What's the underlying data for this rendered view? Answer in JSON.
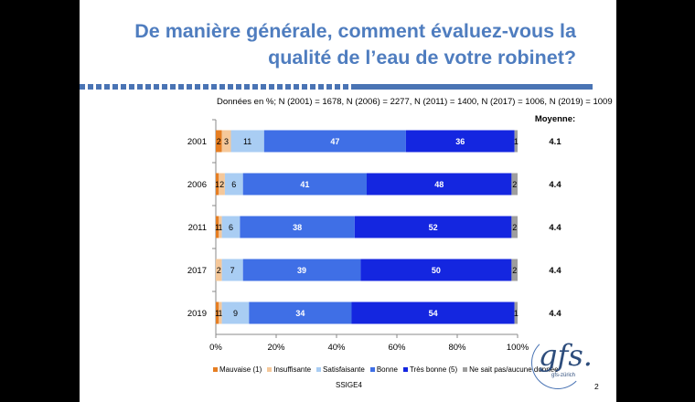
{
  "title_line1": "De manière générale, comment évaluez-vous la",
  "title_line2": "qualité de l’eau de votre robinet?",
  "note": "Données en %; N (2001) = 1678, N (2006) = 2277, N (2011) = 1400, N (2017) = 1006, N (2019) = 1009",
  "avg_header": "Moyenne:",
  "source": "SSIGE4",
  "page_number": "2",
  "logo": {
    "text": "gfs.",
    "sub": "gfs-zürich"
  },
  "chart_data": {
    "type": "bar",
    "orientation": "horizontal",
    "stacked": true,
    "categories": [
      "2001",
      "2006",
      "2011",
      "2017",
      "2019"
    ],
    "series": [
      {
        "name": "Mauvaise (1)",
        "color": "#e67e22",
        "values": [
          2,
          1,
          1,
          0,
          1
        ]
      },
      {
        "name": "Insuffisante",
        "color": "#f5c89a",
        "values": [
          3,
          2,
          1,
          2,
          1
        ]
      },
      {
        "name": "Satisfaisante",
        "color": "#a9cdf3",
        "values": [
          11,
          6,
          6,
          7,
          9
        ]
      },
      {
        "name": "Bonne",
        "color": "#3f6fe6",
        "values": [
          47,
          41,
          38,
          39,
          34
        ]
      },
      {
        "name": "Très bonne (5)",
        "color": "#1426e0",
        "values": [
          36,
          48,
          52,
          50,
          54
        ]
      },
      {
        "name": "Ne sait pas/aucune donnée",
        "color": "#9e9e9e",
        "values": [
          1,
          2,
          2,
          2,
          1
        ]
      }
    ],
    "labels": [
      [
        "2",
        "3",
        "11",
        "47",
        "36",
        "1"
      ],
      [
        "1",
        "2",
        "6",
        "41",
        "48",
        "2"
      ],
      [
        "1",
        "1",
        "6",
        "38",
        "52",
        "2"
      ],
      [
        "",
        "2",
        "7",
        "39",
        "50",
        "2"
      ],
      [
        "1",
        "1",
        "9",
        "34",
        "54",
        "1"
      ]
    ],
    "averages": [
      "4.1",
      "4.4",
      "4.4",
      "4.4",
      "4.4"
    ],
    "xticks": [
      "0%",
      "20%",
      "40%",
      "60%",
      "80%",
      "100%"
    ],
    "xlim": [
      0,
      100
    ],
    "legend_position": "bottom"
  }
}
